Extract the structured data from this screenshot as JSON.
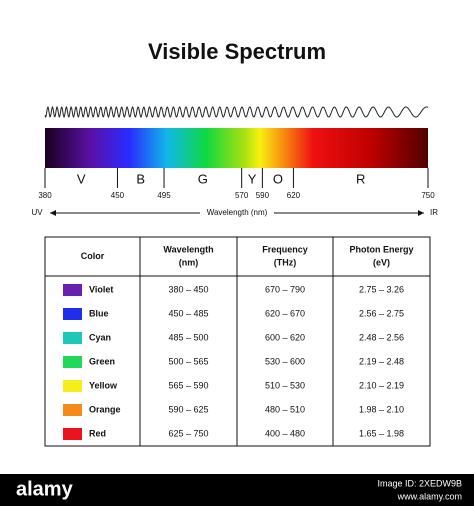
{
  "title": "Visible Spectrum",
  "spectrum": {
    "ticks": [
      380,
      450,
      495,
      570,
      590,
      620,
      750
    ],
    "bands": [
      "V",
      "B",
      "G",
      "Y",
      "O",
      "R"
    ],
    "left_label": "UV",
    "axis_label": "Wavelength (nm)",
    "right_label": "IR"
  },
  "table": {
    "header": [
      [
        "Color"
      ],
      [
        "Wavelength",
        "(nm)"
      ],
      [
        "Frequency",
        "(THz)"
      ],
      [
        "Photon Energy",
        "(eV)"
      ]
    ],
    "rows": [
      [
        "Violet",
        "380 – 450",
        "670 – 790",
        "2.75 – 3.26"
      ],
      [
        "Blue",
        "450 – 485",
        "620 – 670",
        "2.56 – 2.75"
      ],
      [
        "Cyan",
        "485 – 500",
        "600 – 620",
        "2.48 – 2.56"
      ],
      [
        "Green",
        "500 – 565",
        "530 – 600",
        "2.19 – 2.48"
      ],
      [
        "Yellow",
        "565 – 590",
        "510 – 530",
        "2.10 – 2.19"
      ],
      [
        "Orange",
        "590 – 625",
        "480 – 510",
        "1.98 – 2.10"
      ],
      [
        "Red",
        "625 – 750",
        "400 – 480",
        "1.65 – 1.98"
      ]
    ],
    "swatches": [
      "#6a1fb0",
      "#1f2ee8",
      "#1ec8b8",
      "#22d85a",
      "#f5ee1a",
      "#f58a1a",
      "#e8141e"
    ]
  },
  "footer": {
    "brand": "alamy",
    "image_id": "Image ID: 2XEDW9B",
    "site": "www.alamy.com"
  }
}
